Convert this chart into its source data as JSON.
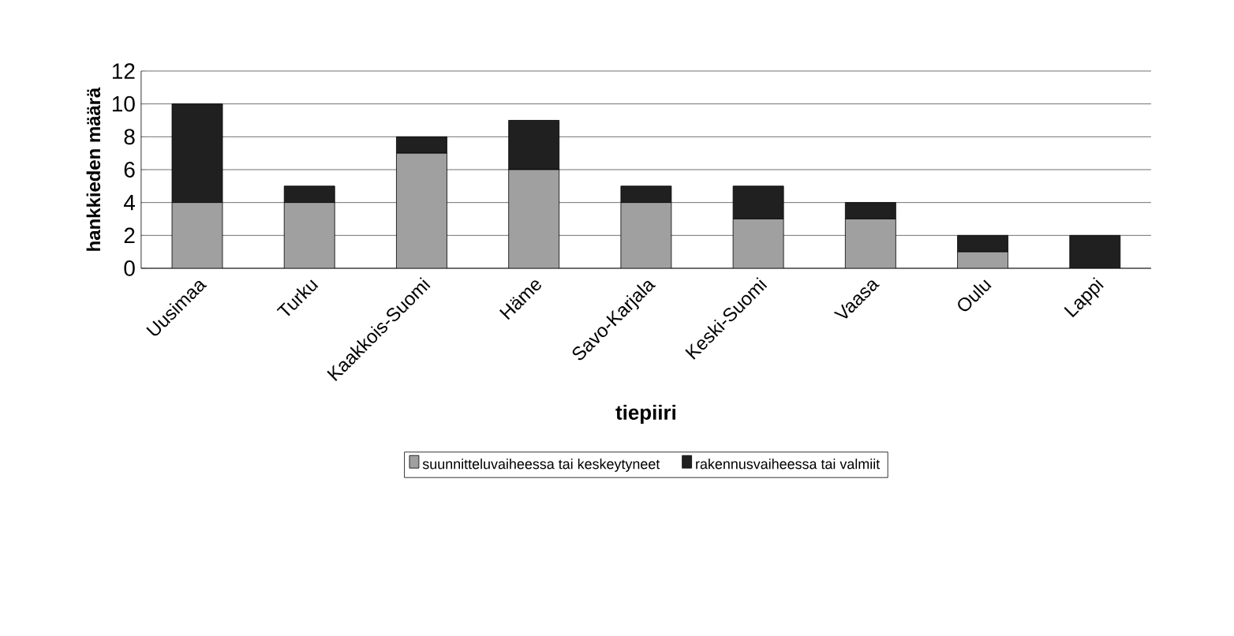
{
  "chart_data": {
    "type": "bar",
    "stacked": true,
    "xlabel": "tiepiiri",
    "ylabel": "hankkieden määrä",
    "categories": [
      "Uusimaa",
      "Turku",
      "Kaakkois-Suomi",
      "Häme",
      "Savo-Karjala",
      "Keski-Suomi",
      "Vaasa",
      "Oulu",
      "Lappi"
    ],
    "series": [
      {
        "name": "suunnitteluvaiheessa tai keskeytyneet",
        "color": "#a0a0a0",
        "values": [
          4,
          4,
          7,
          6,
          4,
          3,
          3,
          1,
          0
        ]
      },
      {
        "name": "rakennusvaiheessa tai valmiit",
        "color": "#202020",
        "values": [
          6,
          1,
          1,
          3,
          1,
          2,
          1,
          1,
          2
        ]
      }
    ],
    "ylim": [
      0,
      12
    ],
    "yticks": [
      0,
      2,
      4,
      6,
      8,
      10,
      12
    ],
    "grid": "y",
    "legend": "bottom"
  }
}
